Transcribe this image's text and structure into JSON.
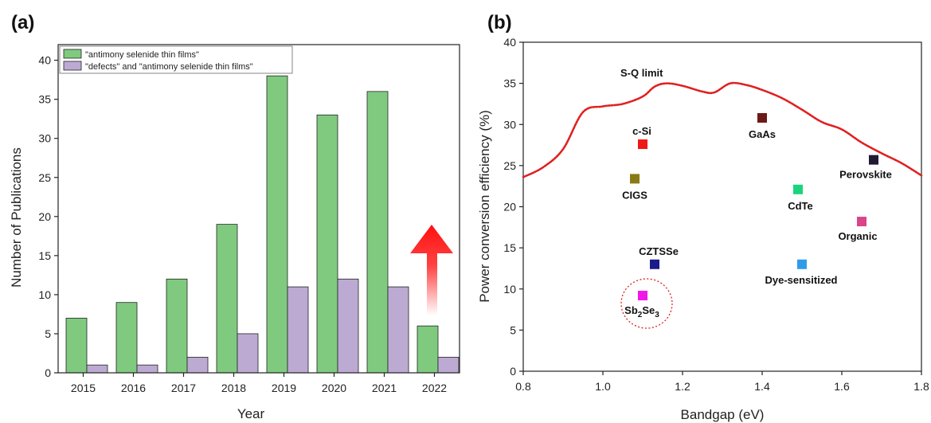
{
  "chart_data": [
    {
      "panel": "(a)",
      "type": "bar",
      "categories": [
        "2015",
        "2016",
        "2017",
        "2018",
        "2019",
        "2020",
        "2021",
        "2022"
      ],
      "series": [
        {
          "name": "\"antimony selenide thin films\"",
          "color": "#7fca7f",
          "values": [
            7,
            9,
            12,
            19,
            38,
            33,
            36,
            6
          ]
        },
        {
          "name": "\"defects\" and \"antimony selenide thin films\"",
          "color": "#bcaad3",
          "values": [
            1,
            1,
            2,
            5,
            11,
            12,
            11,
            2
          ]
        }
      ],
      "xlabel": "Year",
      "ylabel": "Number of Publications",
      "ylim": [
        0,
        42
      ],
      "yticks": [
        0,
        5,
        10,
        15,
        20,
        25,
        30,
        35,
        40
      ],
      "legend": "top-left",
      "annotation": "red upward gradient arrow"
    },
    {
      "panel": "(b)",
      "type": "scatter",
      "xlabel": "Bandgap (eV)",
      "ylabel": "Power conversion efficiency (%)",
      "xlim": [
        0.8,
        1.8
      ],
      "ylim": [
        0,
        40
      ],
      "xticks": [
        "0.8",
        "1.0",
        "1.2",
        "1.4",
        "1.6",
        "1.8"
      ],
      "yticks": [
        "0",
        "5",
        "10",
        "15",
        "20",
        "25",
        "30",
        "35",
        "40"
      ],
      "limit_curve": {
        "name": "S-Q limit",
        "color": "#e02020",
        "x": [
          0.8,
          0.85,
          0.9,
          0.95,
          1.0,
          1.05,
          1.1,
          1.13,
          1.16,
          1.2,
          1.25,
          1.28,
          1.32,
          1.36,
          1.4,
          1.45,
          1.5,
          1.55,
          1.6,
          1.65,
          1.7,
          1.75,
          1.8
        ],
        "y": [
          23.6,
          24.8,
          27.0,
          31.5,
          32.2,
          32.5,
          33.4,
          34.6,
          35.0,
          34.7,
          34.0,
          33.9,
          35.0,
          34.8,
          34.2,
          33.2,
          31.8,
          30.3,
          29.4,
          27.8,
          26.5,
          25.3,
          23.8
        ]
      },
      "points": [
        {
          "label": "c-Si",
          "x": 1.1,
          "y": 27.6,
          "color": "#f01616"
        },
        {
          "label": "GaAs",
          "x": 1.4,
          "y": 30.8,
          "color": "#6b1a16"
        },
        {
          "label": "CIGS",
          "x": 1.08,
          "y": 23.4,
          "color": "#8a7a16"
        },
        {
          "label": "CdTe",
          "x": 1.49,
          "y": 22.1,
          "color": "#19d47a"
        },
        {
          "label": "Perovskite",
          "x": 1.68,
          "y": 25.7,
          "color": "#221a33"
        },
        {
          "label": "Organic",
          "x": 1.65,
          "y": 18.2,
          "color": "#d9458a"
        },
        {
          "label": "CZTSSe",
          "x": 1.13,
          "y": 13.0,
          "color": "#1a1a8a"
        },
        {
          "label": "Dye-sensitized",
          "x": 1.5,
          "y": 13.0,
          "color": "#2f9be8"
        },
        {
          "label": "Sb2Se3",
          "x": 1.1,
          "y": 9.2,
          "color": "#f018e8"
        }
      ]
    }
  ]
}
